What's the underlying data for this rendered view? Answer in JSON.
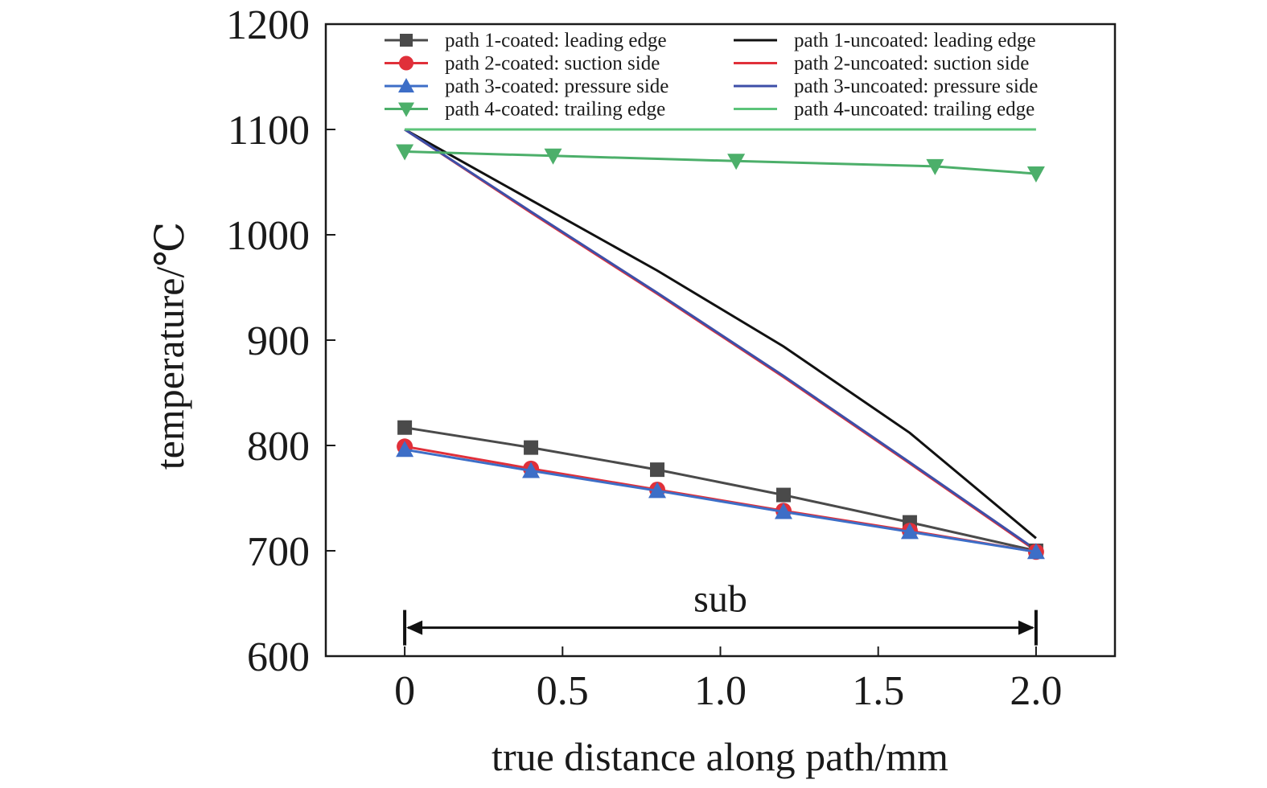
{
  "chart_data": {
    "type": "line",
    "title": "",
    "xlabel": "true distance along path/mm",
    "ylabel": "temperature/℃",
    "xlim": [
      -0.25,
      2.25
    ],
    "ylim": [
      600,
      1200
    ],
    "xticks": [
      0,
      0.5,
      1.0,
      1.5,
      2.0
    ],
    "xtick_labels": [
      "0",
      "0.5",
      "1.0",
      "1.5",
      "2.0"
    ],
    "yticks": [
      600,
      700,
      800,
      900,
      1000,
      1100,
      1200
    ],
    "ytick_labels": [
      "600",
      "700",
      "800",
      "900",
      "1000",
      "1100",
      "1200"
    ],
    "grid": false,
    "legend": "top, two columns",
    "series": [
      {
        "name": "path 1-coated: leading edge",
        "color": "#4a4a4a",
        "marker": "square",
        "x": [
          0,
          0.4,
          0.8,
          1.2,
          1.6,
          2.0
        ],
        "y": [
          817,
          798,
          777,
          753,
          727,
          700
        ]
      },
      {
        "name": "path 2-coated: suction side",
        "color": "#e0303a",
        "marker": "circle",
        "x": [
          0,
          0.4,
          0.8,
          1.2,
          1.6,
          2.0
        ],
        "y": [
          799,
          778,
          758,
          738,
          719,
          699
        ]
      },
      {
        "name": "path 3-coated: pressure side",
        "color": "#3d6ec7",
        "marker": "triangle-up",
        "x": [
          0,
          0.4,
          0.8,
          1.2,
          1.6,
          2.0
        ],
        "y": [
          796,
          776,
          757,
          737,
          718,
          699
        ]
      },
      {
        "name": "path 4-coated: trailing edge",
        "color": "#4caf6a",
        "marker": "triangle-down",
        "x": [
          0,
          0.47,
          1.05,
          1.68,
          2.0
        ],
        "y": [
          1079,
          1075,
          1070,
          1065,
          1058
        ]
      },
      {
        "name": "path 1-uncoated: leading edge",
        "color": "#111111",
        "marker": "none",
        "x": [
          0,
          0.4,
          0.8,
          1.2,
          1.6,
          2.0
        ],
        "y": [
          1100,
          1033,
          966,
          894,
          812,
          712
        ]
      },
      {
        "name": "path 2-uncoated: suction side",
        "color": "#e0303a",
        "marker": "none",
        "x": [
          0,
          0.4,
          0.8,
          1.2,
          1.6,
          2.0
        ],
        "y": [
          1100,
          1021,
          944,
          865,
          783,
          700
        ]
      },
      {
        "name": "path 3-uncoated: pressure side",
        "color": "#3d4fa8",
        "marker": "none",
        "x": [
          0,
          0.4,
          0.8,
          1.2,
          1.6,
          2.0
        ],
        "y": [
          1100,
          1022,
          945,
          866,
          784,
          701
        ]
      },
      {
        "name": "path 4-uncoated: trailing edge",
        "color": "#5cc47a",
        "marker": "none",
        "x": [
          0,
          2.0
        ],
        "y": [
          1100,
          1100
        ]
      }
    ],
    "annotations": [
      {
        "label": "sub",
        "x_from": 0,
        "x_to": 2.0,
        "y": 627
      }
    ]
  }
}
